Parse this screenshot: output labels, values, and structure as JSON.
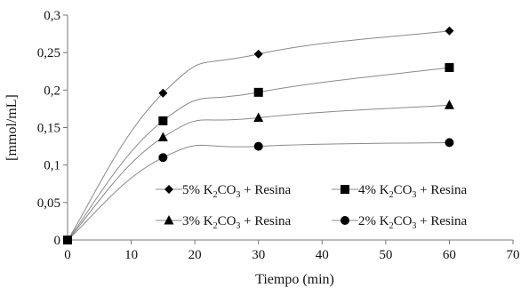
{
  "chart_data": {
    "type": "line",
    "xlabel": "Tiempo (min)",
    "ylabel": "[mmol/mL]",
    "xlim": [
      0,
      70
    ],
    "ylim": [
      0,
      0.3
    ],
    "x_ticks": [
      "0",
      "10",
      "20",
      "30",
      "40",
      "50",
      "60",
      "70"
    ],
    "y_ticks": [
      "0",
      "0,05",
      "0,1",
      "0,15",
      "0,2",
      "0,25",
      "0,3"
    ],
    "grid": false,
    "legend_position": "bottom-right",
    "series": [
      {
        "name": "5% K2CO3 + Resina",
        "label_parts": [
          "5% K",
          "2",
          "CO",
          "3",
          " + Resina"
        ],
        "marker": "diamond",
        "x": [
          0,
          15,
          30,
          60
        ],
        "y": [
          0,
          0.196,
          0.248,
          0.279
        ]
      },
      {
        "name": "4% K2CO3 + Resina",
        "label_parts": [
          "4% K",
          "2",
          "CO",
          "3",
          " + Resina"
        ],
        "marker": "square",
        "x": [
          0,
          15,
          30,
          60
        ],
        "y": [
          0,
          0.159,
          0.197,
          0.23
        ]
      },
      {
        "name": "3% K2CO3 + Resina",
        "label_parts": [
          "3% K",
          "2",
          "CO",
          "3",
          " + Resina"
        ],
        "marker": "triangle",
        "x": [
          0,
          15,
          30,
          60
        ],
        "y": [
          0,
          0.137,
          0.163,
          0.18
        ]
      },
      {
        "name": "2% K2CO3 + Resina",
        "label_parts": [
          "2% K",
          "2",
          "CO",
          "3",
          " + Resina"
        ],
        "marker": "circle",
        "x": [
          0,
          15,
          30,
          60
        ],
        "y": [
          0,
          0.11,
          0.125,
          0.13
        ]
      }
    ]
  }
}
